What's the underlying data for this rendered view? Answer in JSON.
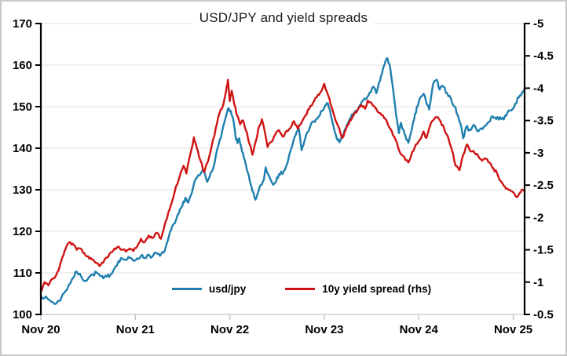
{
  "chart_data": {
    "type": "line",
    "title": "USD/JPY and yield spreads",
    "x_axis": {
      "domain": [
        0,
        5.12
      ],
      "tick_positions": [
        0,
        1,
        2,
        3,
        4,
        5
      ],
      "tick_labels": [
        "Nov 20",
        "Nov 21",
        "Nov 22",
        "Nov 23",
        "Nov 24",
        "Nov 25"
      ]
    },
    "left_axis": {
      "min": 100,
      "max": 170,
      "values": [
        170,
        160,
        150,
        140,
        130,
        120,
        110,
        100
      ],
      "labels": [
        "170",
        "160",
        "150",
        "140",
        "130",
        "120",
        "110",
        "100"
      ]
    },
    "right_axis": {
      "top": -5,
      "bottom": -0.5,
      "values": [
        -5,
        -4.5,
        -4,
        -3.5,
        -3,
        -2.5,
        -2,
        -1.5,
        -1,
        -0.5
      ],
      "labels": [
        "-5",
        "-4.5",
        "-4",
        "-3.5",
        "-3",
        "-2.5",
        "-2",
        "-1.5",
        "-1",
        "-0.5"
      ]
    },
    "colors": {
      "usdjpy": "#1f7fad",
      "spread": "#cf1313",
      "grid": "#e8e8e8",
      "side_axis": "#000000",
      "bottom_axis": "#d9d9d9",
      "frame_border": "#c9c9c9"
    },
    "legend": [
      {
        "label": "usd/jpy",
        "color": "#1f7fad"
      },
      {
        "label": "10y yield spread (rhs)",
        "color": "#cf1313"
      }
    ],
    "series": [
      {
        "name": "usd/jpy",
        "axis": "left",
        "points": [
          [
            0.0,
            104.6
          ],
          [
            0.04,
            104.0
          ],
          [
            0.08,
            103.6
          ],
          [
            0.12,
            103.0
          ],
          [
            0.16,
            102.6
          ],
          [
            0.19,
            103.2
          ],
          [
            0.22,
            104.2
          ],
          [
            0.26,
            105.6
          ],
          [
            0.3,
            107.2
          ],
          [
            0.34,
            108.8
          ],
          [
            0.38,
            110.3
          ],
          [
            0.43,
            109.0
          ],
          [
            0.47,
            108.1
          ],
          [
            0.51,
            109.0
          ],
          [
            0.55,
            109.6
          ],
          [
            0.59,
            110.1
          ],
          [
            0.63,
            109.2
          ],
          [
            0.66,
            108.7
          ],
          [
            0.7,
            109.1
          ],
          [
            0.74,
            109.7
          ],
          [
            0.78,
            111.1
          ],
          [
            0.82,
            112.8
          ],
          [
            0.86,
            113.5
          ],
          [
            0.9,
            113.1
          ],
          [
            0.94,
            113.6
          ],
          [
            0.98,
            112.9
          ],
          [
            1.02,
            113.5
          ],
          [
            1.06,
            114.1
          ],
          [
            1.1,
            113.6
          ],
          [
            1.14,
            114.4
          ],
          [
            1.18,
            113.9
          ],
          [
            1.22,
            114.8
          ],
          [
            1.26,
            114.1
          ],
          [
            1.3,
            114.9
          ],
          [
            1.34,
            117.5
          ],
          [
            1.38,
            120.4
          ],
          [
            1.42,
            122.0
          ],
          [
            1.46,
            124.3
          ],
          [
            1.5,
            126.3
          ],
          [
            1.53,
            128.1
          ],
          [
            1.56,
            126.9
          ],
          [
            1.6,
            129.4
          ],
          [
            1.64,
            132.6
          ],
          [
            1.68,
            133.5
          ],
          [
            1.72,
            134.8
          ],
          [
            1.76,
            131.9
          ],
          [
            1.8,
            134.2
          ],
          [
            1.84,
            136.6
          ],
          [
            1.88,
            140.8
          ],
          [
            1.92,
            144.2
          ],
          [
            1.96,
            147.7
          ],
          [
            1.99,
            149.6
          ],
          [
            2.02,
            148.0
          ],
          [
            2.04,
            146.5
          ],
          [
            2.06,
            143.0
          ],
          [
            2.08,
            141.2
          ],
          [
            2.1,
            142.4
          ],
          [
            2.12,
            140.3
          ],
          [
            2.15,
            137.6
          ],
          [
            2.18,
            134.9
          ],
          [
            2.21,
            132.2
          ],
          [
            2.24,
            129.6
          ],
          [
            2.27,
            127.6
          ],
          [
            2.3,
            129.3
          ],
          [
            2.33,
            131.2
          ],
          [
            2.36,
            132.3
          ],
          [
            2.38,
            135.4
          ],
          [
            2.41,
            133.6
          ],
          [
            2.44,
            132.0
          ],
          [
            2.47,
            131.5
          ],
          [
            2.5,
            133.0
          ],
          [
            2.53,
            133.6
          ],
          [
            2.57,
            134.5
          ],
          [
            2.61,
            136.4
          ],
          [
            2.64,
            139.2
          ],
          [
            2.67,
            141.4
          ],
          [
            2.7,
            143.3
          ],
          [
            2.73,
            144.7
          ],
          [
            2.76,
            139.5
          ],
          [
            2.79,
            141.8
          ],
          [
            2.82,
            143.8
          ],
          [
            2.86,
            145.9
          ],
          [
            2.9,
            146.3
          ],
          [
            2.94,
            147.6
          ],
          [
            2.98,
            149.0
          ],
          [
            3.01,
            150.3
          ],
          [
            3.04,
            150.7
          ],
          [
            3.07,
            147.8
          ],
          [
            3.1,
            145.0
          ],
          [
            3.13,
            142.5
          ],
          [
            3.16,
            141.4
          ],
          [
            3.2,
            143.1
          ],
          [
            3.24,
            145.6
          ],
          [
            3.28,
            147.3
          ],
          [
            3.32,
            148.6
          ],
          [
            3.36,
            149.5
          ],
          [
            3.4,
            151.3
          ],
          [
            3.44,
            151.8
          ],
          [
            3.48,
            153.4
          ],
          [
            3.52,
            154.8
          ],
          [
            3.55,
            153.2
          ],
          [
            3.58,
            155.9
          ],
          [
            3.61,
            157.8
          ],
          [
            3.64,
            160.3
          ],
          [
            3.67,
            161.6
          ],
          [
            3.7,
            158.9
          ],
          [
            3.73,
            153.8
          ],
          [
            3.76,
            147.9
          ],
          [
            3.79,
            143.6
          ],
          [
            3.81,
            146.1
          ],
          [
            3.83,
            144.6
          ],
          [
            3.86,
            142.9
          ],
          [
            3.89,
            141.3
          ],
          [
            3.92,
            143.9
          ],
          [
            3.95,
            146.8
          ],
          [
            3.98,
            149.9
          ],
          [
            4.01,
            152.0
          ],
          [
            4.05,
            153.1
          ],
          [
            4.08,
            150.9
          ],
          [
            4.11,
            149.3
          ],
          [
            4.15,
            155.3
          ],
          [
            4.19,
            156.5
          ],
          [
            4.22,
            154.1
          ],
          [
            4.26,
            154.8
          ],
          [
            4.3,
            153.3
          ],
          [
            4.34,
            151.9
          ],
          [
            4.38,
            150.0
          ],
          [
            4.41,
            148.0
          ],
          [
            4.44,
            146.0
          ],
          [
            4.47,
            142.4
          ],
          [
            4.5,
            145.1
          ],
          [
            4.54,
            144.4
          ],
          [
            4.58,
            145.6
          ],
          [
            4.62,
            144.1
          ],
          [
            4.66,
            144.8
          ],
          [
            4.7,
            145.3
          ],
          [
            4.74,
            146.3
          ],
          [
            4.78,
            147.7
          ],
          [
            4.82,
            147.0
          ],
          [
            4.86,
            147.5
          ],
          [
            4.9,
            146.9
          ],
          [
            4.94,
            148.6
          ],
          [
            4.98,
            149.1
          ],
          [
            5.02,
            150.7
          ],
          [
            5.06,
            152.2
          ],
          [
            5.09,
            153.2
          ],
          [
            5.12,
            154.4
          ]
        ]
      },
      {
        "name": "10y yield spread (rhs)",
        "axis": "right",
        "points": [
          [
            0.0,
            -0.85
          ],
          [
            0.04,
            -1.0
          ],
          [
            0.08,
            -0.95
          ],
          [
            0.12,
            -1.05
          ],
          [
            0.16,
            -1.1
          ],
          [
            0.2,
            -1.25
          ],
          [
            0.24,
            -1.42
          ],
          [
            0.27,
            -1.55
          ],
          [
            0.31,
            -1.62
          ],
          [
            0.35,
            -1.57
          ],
          [
            0.38,
            -1.5
          ],
          [
            0.42,
            -1.52
          ],
          [
            0.46,
            -1.45
          ],
          [
            0.5,
            -1.4
          ],
          [
            0.54,
            -1.35
          ],
          [
            0.58,
            -1.3
          ],
          [
            0.62,
            -1.25
          ],
          [
            0.66,
            -1.3
          ],
          [
            0.7,
            -1.38
          ],
          [
            0.74,
            -1.46
          ],
          [
            0.78,
            -1.52
          ],
          [
            0.82,
            -1.55
          ],
          [
            0.86,
            -1.5
          ],
          [
            0.9,
            -1.47
          ],
          [
            0.94,
            -1.52
          ],
          [
            0.98,
            -1.48
          ],
          [
            1.02,
            -1.55
          ],
          [
            1.06,
            -1.67
          ],
          [
            1.1,
            -1.62
          ],
          [
            1.14,
            -1.72
          ],
          [
            1.18,
            -1.68
          ],
          [
            1.23,
            -1.76
          ],
          [
            1.27,
            -1.67
          ],
          [
            1.31,
            -1.88
          ],
          [
            1.35,
            -2.08
          ],
          [
            1.39,
            -2.25
          ],
          [
            1.43,
            -2.48
          ],
          [
            1.47,
            -2.64
          ],
          [
            1.51,
            -2.8
          ],
          [
            1.54,
            -2.68
          ],
          [
            1.58,
            -2.97
          ],
          [
            1.62,
            -3.24
          ],
          [
            1.65,
            -3.08
          ],
          [
            1.69,
            -2.88
          ],
          [
            1.73,
            -2.7
          ],
          [
            1.77,
            -2.87
          ],
          [
            1.81,
            -3.12
          ],
          [
            1.85,
            -3.37
          ],
          [
            1.89,
            -3.61
          ],
          [
            1.93,
            -3.74
          ],
          [
            1.96,
            -3.95
          ],
          [
            1.98,
            -4.13
          ],
          [
            2.0,
            -3.8
          ],
          [
            2.02,
            -3.96
          ],
          [
            2.05,
            -3.74
          ],
          [
            2.08,
            -3.57
          ],
          [
            2.11,
            -3.44
          ],
          [
            2.14,
            -3.5
          ],
          [
            2.17,
            -3.35
          ],
          [
            2.21,
            -3.13
          ],
          [
            2.24,
            -2.97
          ],
          [
            2.28,
            -3.2
          ],
          [
            2.31,
            -3.41
          ],
          [
            2.34,
            -3.52
          ],
          [
            2.37,
            -3.33
          ],
          [
            2.4,
            -3.09
          ],
          [
            2.44,
            -3.17
          ],
          [
            2.48,
            -3.28
          ],
          [
            2.52,
            -3.35
          ],
          [
            2.56,
            -3.25
          ],
          [
            2.6,
            -3.34
          ],
          [
            2.64,
            -3.38
          ],
          [
            2.68,
            -3.49
          ],
          [
            2.72,
            -3.37
          ],
          [
            2.76,
            -3.47
          ],
          [
            2.8,
            -3.58
          ],
          [
            2.84,
            -3.68
          ],
          [
            2.88,
            -3.77
          ],
          [
            2.92,
            -3.86
          ],
          [
            2.96,
            -3.94
          ],
          [
            3.0,
            -4.07
          ],
          [
            3.04,
            -3.89
          ],
          [
            3.08,
            -3.7
          ],
          [
            3.12,
            -3.5
          ],
          [
            3.16,
            -3.37
          ],
          [
            3.19,
            -3.23
          ],
          [
            3.23,
            -3.37
          ],
          [
            3.27,
            -3.5
          ],
          [
            3.31,
            -3.58
          ],
          [
            3.35,
            -3.65
          ],
          [
            3.39,
            -3.74
          ],
          [
            3.43,
            -3.68
          ],
          [
            3.46,
            -3.81
          ],
          [
            3.5,
            -3.77
          ],
          [
            3.54,
            -3.7
          ],
          [
            3.58,
            -3.62
          ],
          [
            3.62,
            -3.58
          ],
          [
            3.66,
            -3.5
          ],
          [
            3.7,
            -3.37
          ],
          [
            3.74,
            -3.25
          ],
          [
            3.78,
            -3.09
          ],
          [
            3.82,
            -2.97
          ],
          [
            3.86,
            -2.89
          ],
          [
            3.89,
            -2.85
          ],
          [
            3.93,
            -3.01
          ],
          [
            3.97,
            -3.13
          ],
          [
            4.01,
            -3.2
          ],
          [
            4.05,
            -3.33
          ],
          [
            4.08,
            -3.23
          ],
          [
            4.12,
            -3.42
          ],
          [
            4.15,
            -3.5
          ],
          [
            4.19,
            -3.55
          ],
          [
            4.23,
            -3.49
          ],
          [
            4.27,
            -3.37
          ],
          [
            4.31,
            -3.25
          ],
          [
            4.35,
            -3.05
          ],
          [
            4.39,
            -2.8
          ],
          [
            4.43,
            -2.73
          ],
          [
            4.47,
            -2.97
          ],
          [
            4.51,
            -3.13
          ],
          [
            4.55,
            -3.02
          ],
          [
            4.59,
            -3.0
          ],
          [
            4.63,
            -2.95
          ],
          [
            4.67,
            -2.88
          ],
          [
            4.71,
            -2.91
          ],
          [
            4.75,
            -2.85
          ],
          [
            4.79,
            -2.76
          ],
          [
            4.83,
            -2.68
          ],
          [
            4.87,
            -2.56
          ],
          [
            4.91,
            -2.48
          ],
          [
            4.95,
            -2.43
          ],
          [
            4.99,
            -2.4
          ],
          [
            5.03,
            -2.32
          ],
          [
            5.06,
            -2.36
          ],
          [
            5.09,
            -2.43
          ],
          [
            5.12,
            -2.4
          ]
        ]
      }
    ]
  }
}
